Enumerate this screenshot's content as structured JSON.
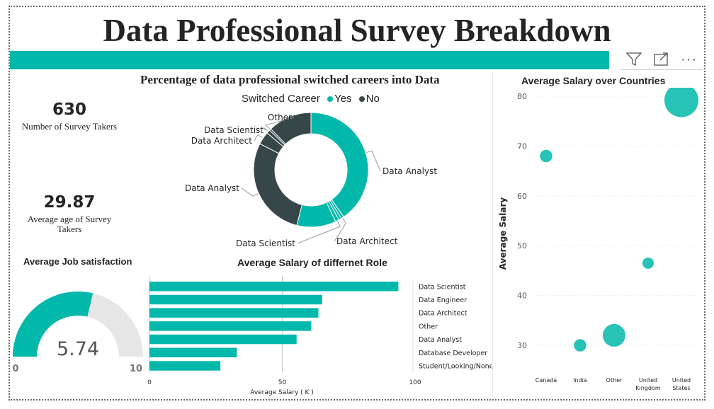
{
  "page": {
    "title": "Data Professional Survey Breakdown"
  },
  "toolbar": {
    "filter_icon": "filter-icon",
    "focus_icon": "focus-mode-icon",
    "more_icon": "more-options-icon",
    "more_label": "···"
  },
  "kpis": {
    "survey_takers": {
      "value": "630",
      "label": "Number of Survey  Takers"
    },
    "average_age": {
      "value": "29.87",
      "label": "Average age of Survey Takers"
    }
  },
  "colors": {
    "teal": "#01b8aa",
    "dark": "#374649",
    "gauge_track": "#e6e6e6",
    "grid": "#e6e6e6"
  },
  "chart_data": [
    {
      "id": "career_switch",
      "type": "pie",
      "variant": "donut",
      "title": "Percentage of data professional switched careers into Data",
      "legend": {
        "title": "Switched Career",
        "position": "top",
        "entries": [
          "Yes",
          "No"
        ]
      },
      "slices": [
        {
          "group": "Yes",
          "label": "Data Analyst",
          "value": 157
        },
        {
          "group": "Yes",
          "label": "Data Architect",
          "value": 3
        },
        {
          "group": "Yes",
          "label": "",
          "value": 3
        },
        {
          "group": "Yes",
          "label": "Data Scientist",
          "value": 4
        },
        {
          "group": "Yes",
          "label": "",
          "value": 43
        },
        {
          "group": "No",
          "label": "Data Analyst",
          "value": 111
        },
        {
          "group": "No",
          "label": "Data Architect",
          "value": 14
        },
        {
          "group": "No",
          "label": "Data Scientist",
          "value": 4
        },
        {
          "group": "No",
          "label": "Other",
          "value": 2
        },
        {
          "group": "No",
          "label": "",
          "value": 48
        }
      ],
      "visible_labels": [
        "Other",
        "Data Scientist",
        "Data Architect",
        "Data Analyst",
        "Data Scientist",
        "Data Architect",
        "Data Analyst"
      ]
    },
    {
      "id": "salary_by_role",
      "type": "bar",
      "orientation": "horizontal",
      "title": "Average Salary of differnet Role",
      "xlabel": "Average Salary ( K )",
      "ylabel": "",
      "xlim": [
        0,
        100
      ],
      "xticks": [
        0,
        50,
        100
      ],
      "categories": [
        "Data Scientist",
        "Data Engineer",
        "Data Architect",
        "Other",
        "Data Analyst",
        "Database Developer",
        "Student/Looking/None"
      ],
      "values": [
        93.7,
        65.0,
        63.6,
        60.9,
        55.4,
        32.9,
        26.7
      ]
    },
    {
      "id": "job_satisfaction",
      "type": "gauge",
      "title": "Average Job satisfaction",
      "value": 5.74,
      "value_label": "5.74",
      "min": 0,
      "max": 10,
      "min_label": "0",
      "max_label": "10"
    },
    {
      "id": "salary_by_country",
      "type": "scatter",
      "title": "Average Salary over Countries",
      "xlabel": "",
      "ylabel": "Average Salary",
      "ylim": [
        25,
        82
      ],
      "yticks": [
        30,
        40,
        50,
        60,
        70,
        80
      ],
      "grid": true,
      "categories": [
        "Canada",
        "India",
        "Other",
        "United Kingdom",
        "United States"
      ],
      "category_labels": [
        [
          "Canada"
        ],
        [
          "India"
        ],
        [
          "Other"
        ],
        [
          "United",
          "Kingdom"
        ],
        [
          "United",
          "States"
        ]
      ],
      "values": [
        68.0,
        30.0,
        32.0,
        46.5,
        79.2
      ],
      "relative_size": [
        1.1,
        1.1,
        2.0,
        1.0,
        3.0
      ]
    }
  ]
}
